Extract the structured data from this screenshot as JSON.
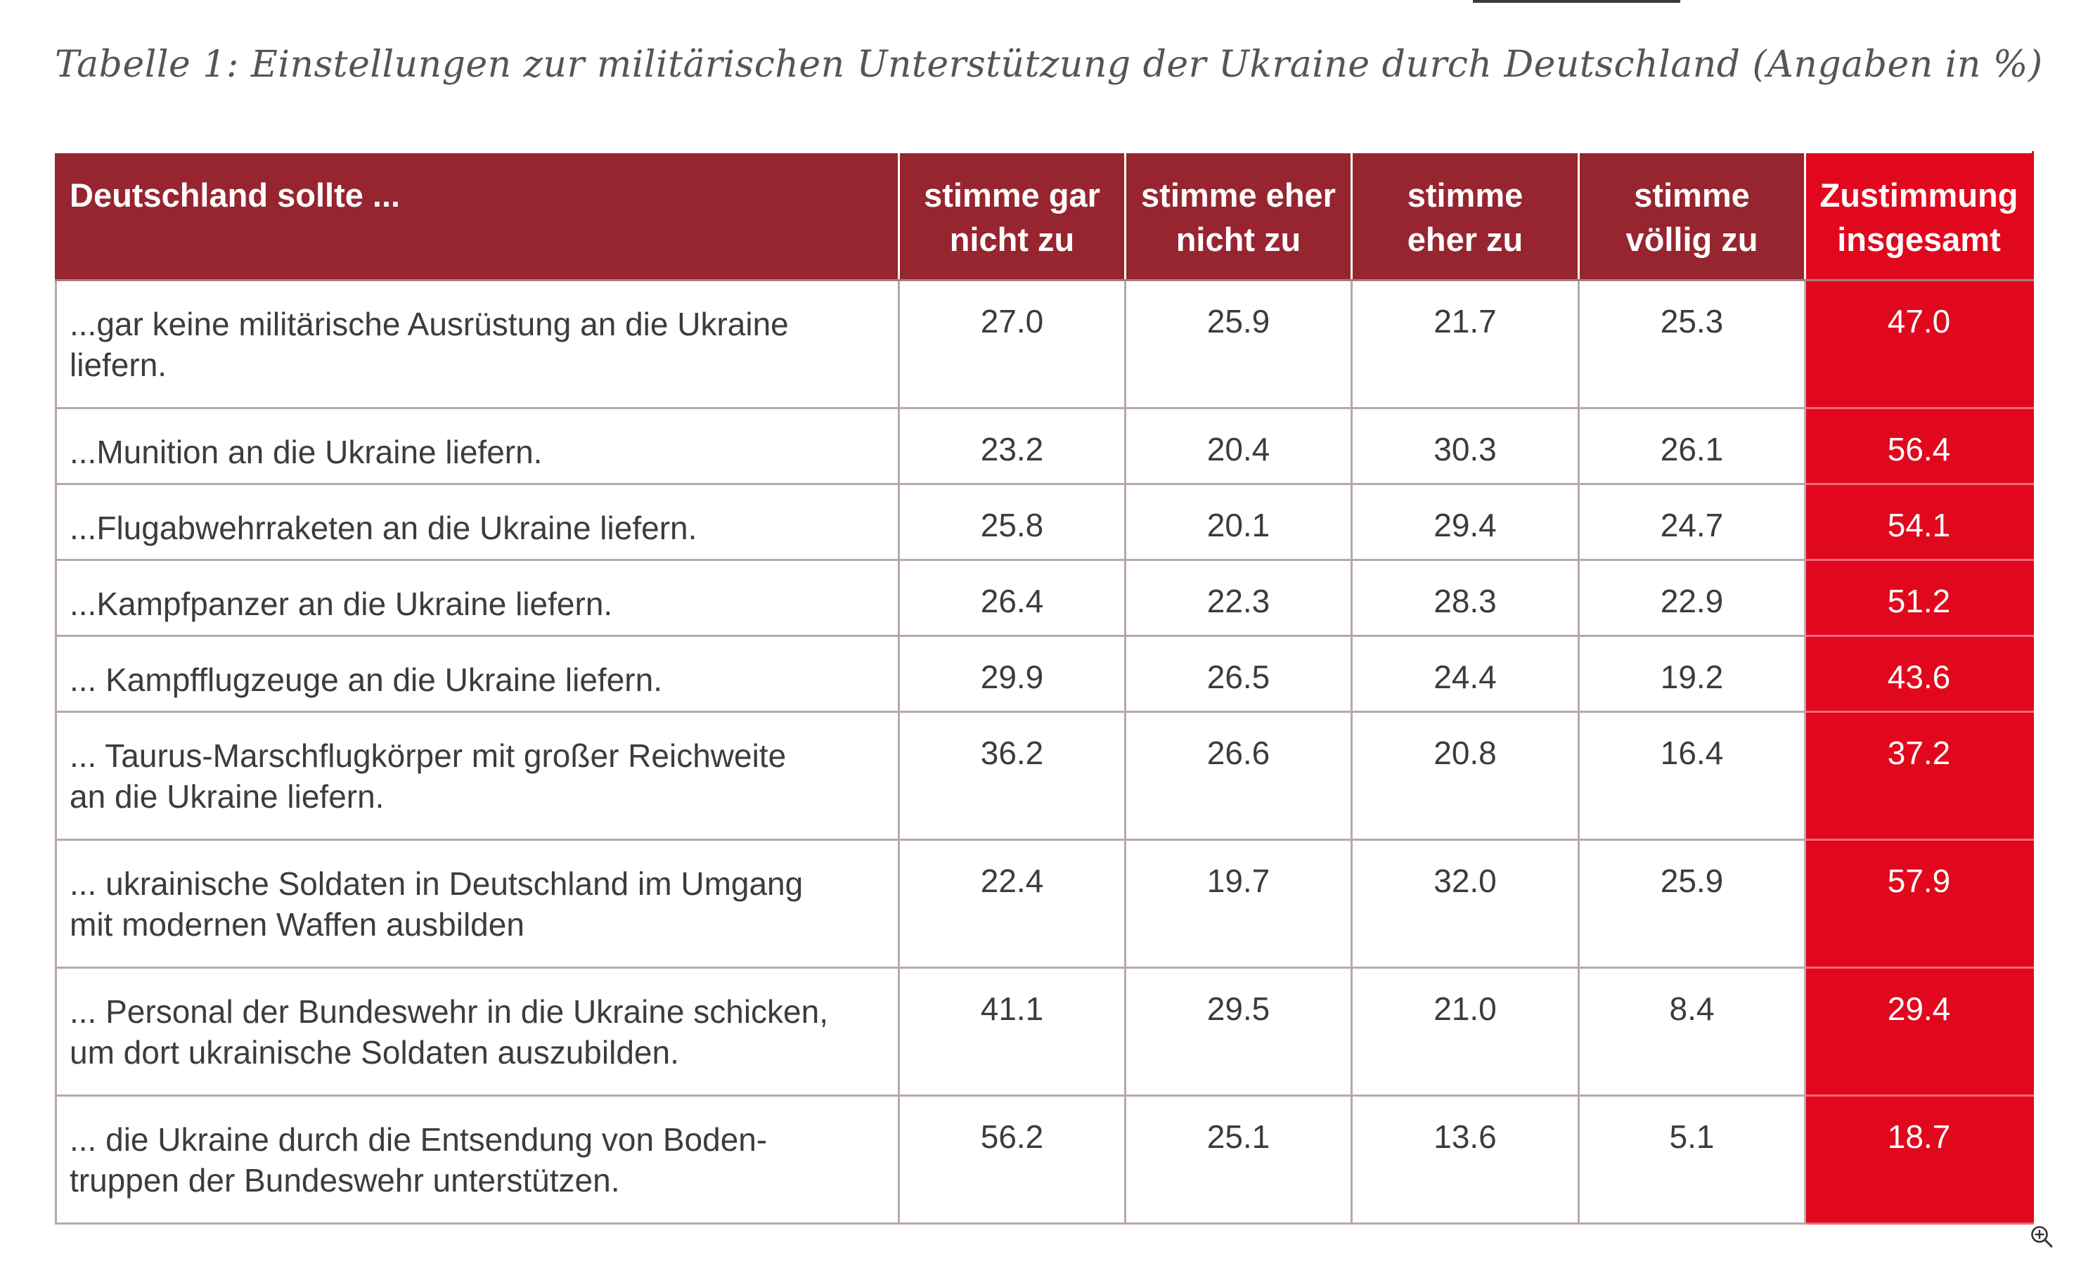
{
  "caption": "Tabelle 1: Einstellungen zur militärischen Unterstützung der Ukraine durch Deutschland (Angaben in  %)",
  "table": {
    "headers": {
      "statement": "Deutschland sollte ...",
      "col1_line1": "stimme gar",
      "col1_line2": "nicht zu",
      "col2_line1": "stimme eher",
      "col2_line2": "nicht zu",
      "col3_line1": "stimme",
      "col3_line2": "eher zu",
      "col4_line1": "stimme",
      "col4_line2": "völlig zu",
      "total_line1": "Zustimmung",
      "total_line2": "insgesamt"
    },
    "rows": [
      {
        "statement_line1": "...gar keine militärische Ausrüstung an die Ukraine",
        "statement_line2": "liefern.",
        "gar_nicht": "27.0",
        "eher_nicht": "25.9",
        "eher_zu": "21.7",
        "voellig_zu": "25.3",
        "total": "47.0"
      },
      {
        "statement_line1": "...Munition an die Ukraine liefern.",
        "gar_nicht": "23.2",
        "eher_nicht": "20.4",
        "eher_zu": "30.3",
        "voellig_zu": "26.1",
        "total": "56.4"
      },
      {
        "statement_line1": "...Flugabwehrraketen an die Ukraine liefern.",
        "gar_nicht": "25.8",
        "eher_nicht": "20.1",
        "eher_zu": "29.4",
        "voellig_zu": "24.7",
        "total": "54.1"
      },
      {
        "statement_line1": "...Kampfpanzer an die Ukraine liefern.",
        "gar_nicht": "26.4",
        "eher_nicht": "22.3",
        "eher_zu": "28.3",
        "voellig_zu": "22.9",
        "total": "51.2"
      },
      {
        "statement_line1": "... Kampfflugzeuge an die Ukraine liefern.",
        "gar_nicht": "29.9",
        "eher_nicht": "26.5",
        "eher_zu": "24.4",
        "voellig_zu": "19.2",
        "total": "43.6"
      },
      {
        "statement_line1": "... Taurus-Marschflugkörper mit großer Reichweite",
        "statement_line2": "an die Ukraine liefern.",
        "gar_nicht": "36.2",
        "eher_nicht": "26.6",
        "eher_zu": "20.8",
        "voellig_zu": "16.4",
        "total": "37.2"
      },
      {
        "statement_line1": "... ukrainische Soldaten in Deutschland im Umgang",
        "statement_line2": "mit modernen Waffen ausbilden",
        "gar_nicht": "22.4",
        "eher_nicht": "19.7",
        "eher_zu": "32.0",
        "voellig_zu": "25.9",
        "total": "57.9"
      },
      {
        "statement_line1": "... Personal der Bundeswehr in die Ukraine schicken,",
        "statement_line2": "um dort ukrainische Soldaten auszubilden.",
        "gar_nicht": "41.1",
        "eher_nicht": "29.5",
        "eher_zu": "21.0",
        "voellig_zu": "8.4",
        "total": "29.4"
      },
      {
        "statement_line1": "... die Ukraine durch die Entsendung von Boden-",
        "statement_line2": "truppen der Bundeswehr unterstützen.",
        "gar_nicht": "56.2",
        "eher_nicht": "25.1",
        "eher_zu": "13.6",
        "voellig_zu": "5.1",
        "total": "18.7"
      }
    ]
  },
  "colors": {
    "header_dark_red": "#962530",
    "total_bright_red": "#e1081d",
    "grid_line": "#b9a8a8",
    "body_text": "#3c3c3c",
    "caption_text": "#555555"
  },
  "icons": {
    "zoom": "zoom-in-icon"
  }
}
